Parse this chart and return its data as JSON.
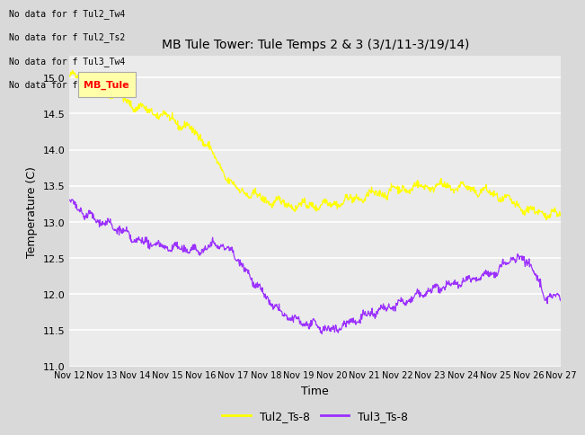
{
  "title": "MB Tule Tower: Tule Temps 2 & 3 (3/1/11-3/19/14)",
  "xlabel": "Time",
  "ylabel": "Temperature (C)",
  "ylim": [
    11.0,
    15.3
  ],
  "xlim": [
    0,
    15
  ],
  "x_tick_labels": [
    "Nov 12",
    "Nov 13",
    "Nov 14",
    "Nov 15",
    "Nov 16",
    "Nov 17",
    "Nov 18",
    "Nov 19",
    "Nov 20",
    "Nov 21",
    "Nov 22",
    "Nov 23",
    "Nov 24",
    "Nov 25",
    "Nov 26",
    "Nov 27"
  ],
  "yticks": [
    11.0,
    11.5,
    12.0,
    12.5,
    13.0,
    13.5,
    14.0,
    14.5,
    15.0
  ],
  "line1_color": "#ffff00",
  "line2_color": "#9b30ff",
  "legend_labels": [
    "Tul2_Ts-8",
    "Tul3_Ts-8"
  ],
  "fig_bg_color": "#d9d9d9",
  "plot_bg_color": "#ebebeb",
  "annotations": [
    "No data for f Tul2_Tw4",
    "No data for f Tul2_Ts2",
    "No data for f Tul3_Tw4",
    "No data for f Tul3_Ts2"
  ],
  "tooltip_text": "MB_Tule",
  "tooltip_bg": "#ffffaa",
  "y2_base_x": [
    0,
    0.3,
    0.7,
    1.5,
    2,
    3,
    4,
    5,
    6,
    7,
    8,
    9,
    10,
    11,
    12,
    13,
    14,
    15
  ],
  "y2_base_y": [
    15.0,
    15.02,
    14.85,
    14.75,
    14.6,
    14.45,
    14.2,
    13.48,
    13.3,
    13.22,
    13.25,
    13.35,
    13.45,
    13.5,
    13.48,
    13.38,
    13.15,
    13.1
  ],
  "y3_base_x": [
    0,
    0.5,
    1,
    1.5,
    2,
    3,
    4,
    4.5,
    5,
    5.5,
    6,
    6.5,
    7,
    8,
    9,
    10,
    11,
    12,
    13,
    13.5,
    14,
    14.5,
    15
  ],
  "y3_base_y": [
    13.27,
    13.1,
    13.0,
    12.9,
    12.75,
    12.65,
    12.6,
    12.7,
    12.58,
    12.25,
    11.95,
    11.72,
    11.62,
    11.5,
    11.7,
    11.85,
    12.05,
    12.18,
    12.3,
    12.5,
    12.47,
    11.97,
    11.95
  ]
}
